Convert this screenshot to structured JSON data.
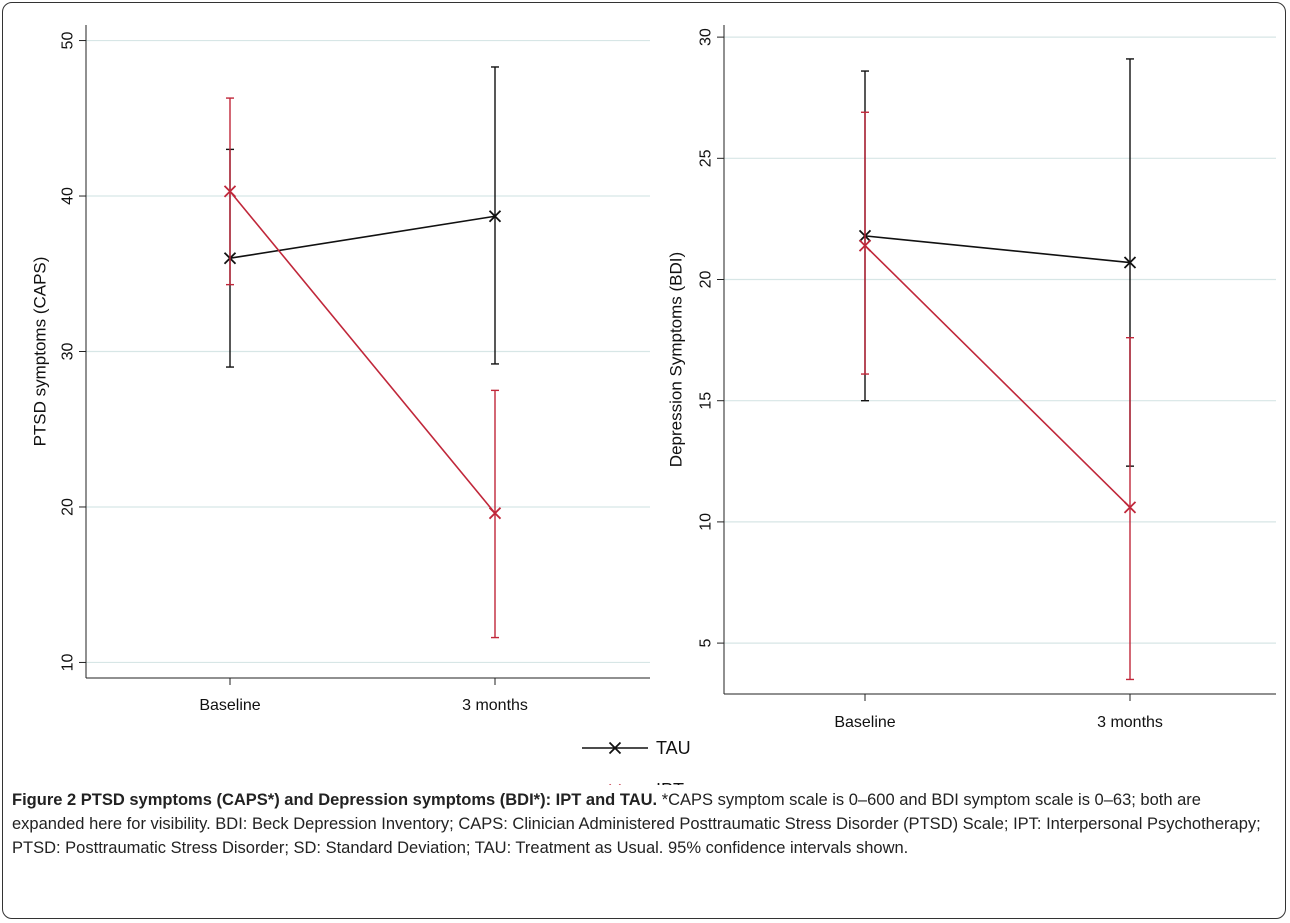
{
  "chart_data": [
    {
      "type": "line",
      "ylabel": "PTSD symptoms (CAPS)",
      "xlabel": "",
      "categories": [
        "Baseline",
        "3 months"
      ],
      "ylim": [
        9,
        51
      ],
      "yticks": [
        10,
        20,
        30,
        40,
        50
      ],
      "grid": true,
      "series": [
        {
          "name": "TAU",
          "color": "#111111",
          "marker": "x",
          "values": [
            36.0,
            38.7
          ],
          "ci_low": [
            29.0,
            29.2
          ],
          "ci_high": [
            43.0,
            48.3
          ]
        },
        {
          "name": "IPT",
          "color": "#c0273a",
          "marker": "x",
          "values": [
            40.3,
            19.6
          ],
          "ci_low": [
            34.3,
            11.6
          ],
          "ci_high": [
            46.3,
            27.5
          ]
        }
      ]
    },
    {
      "type": "line",
      "ylabel": "Depression Symptoms (BDI)",
      "xlabel": "",
      "categories": [
        "Baseline",
        "3 months"
      ],
      "ylim": [
        2.9,
        30.5
      ],
      "yticks": [
        5,
        10,
        15,
        20,
        25,
        30
      ],
      "grid": true,
      "series": [
        {
          "name": "TAU",
          "color": "#111111",
          "marker": "x",
          "values": [
            21.8,
            20.7
          ],
          "ci_low": [
            15.0,
            12.3
          ],
          "ci_high": [
            28.6,
            29.1
          ]
        },
        {
          "name": "IPT",
          "color": "#c0273a",
          "marker": "x",
          "values": [
            21.4,
            10.6
          ],
          "ci_low": [
            16.1,
            3.5
          ],
          "ci_high": [
            26.9,
            17.6
          ]
        }
      ]
    }
  ],
  "legend": [
    {
      "label": "TAU",
      "color": "#111111"
    },
    {
      "label": "IPT",
      "color": "#c0273a"
    }
  ],
  "caption": {
    "lead": "Figure 2 PTSD symptoms (CAPS*) and Depression symptoms (BDI*): IPT and TAU.",
    "body": " *CAPS symptom scale is 0–600 and BDI symptom scale is 0–63; both are expanded here for visibility. BDI: Beck Depression Inventory; CAPS: Clinician Administered Posttraumatic Stress Disorder (PTSD) Scale; IPT: Interpersonal Psychotherapy; PTSD: Posttraumatic Stress Disorder; SD: Standard Deviation; TAU: Treatment as Usual. 95% confidence intervals shown."
  }
}
